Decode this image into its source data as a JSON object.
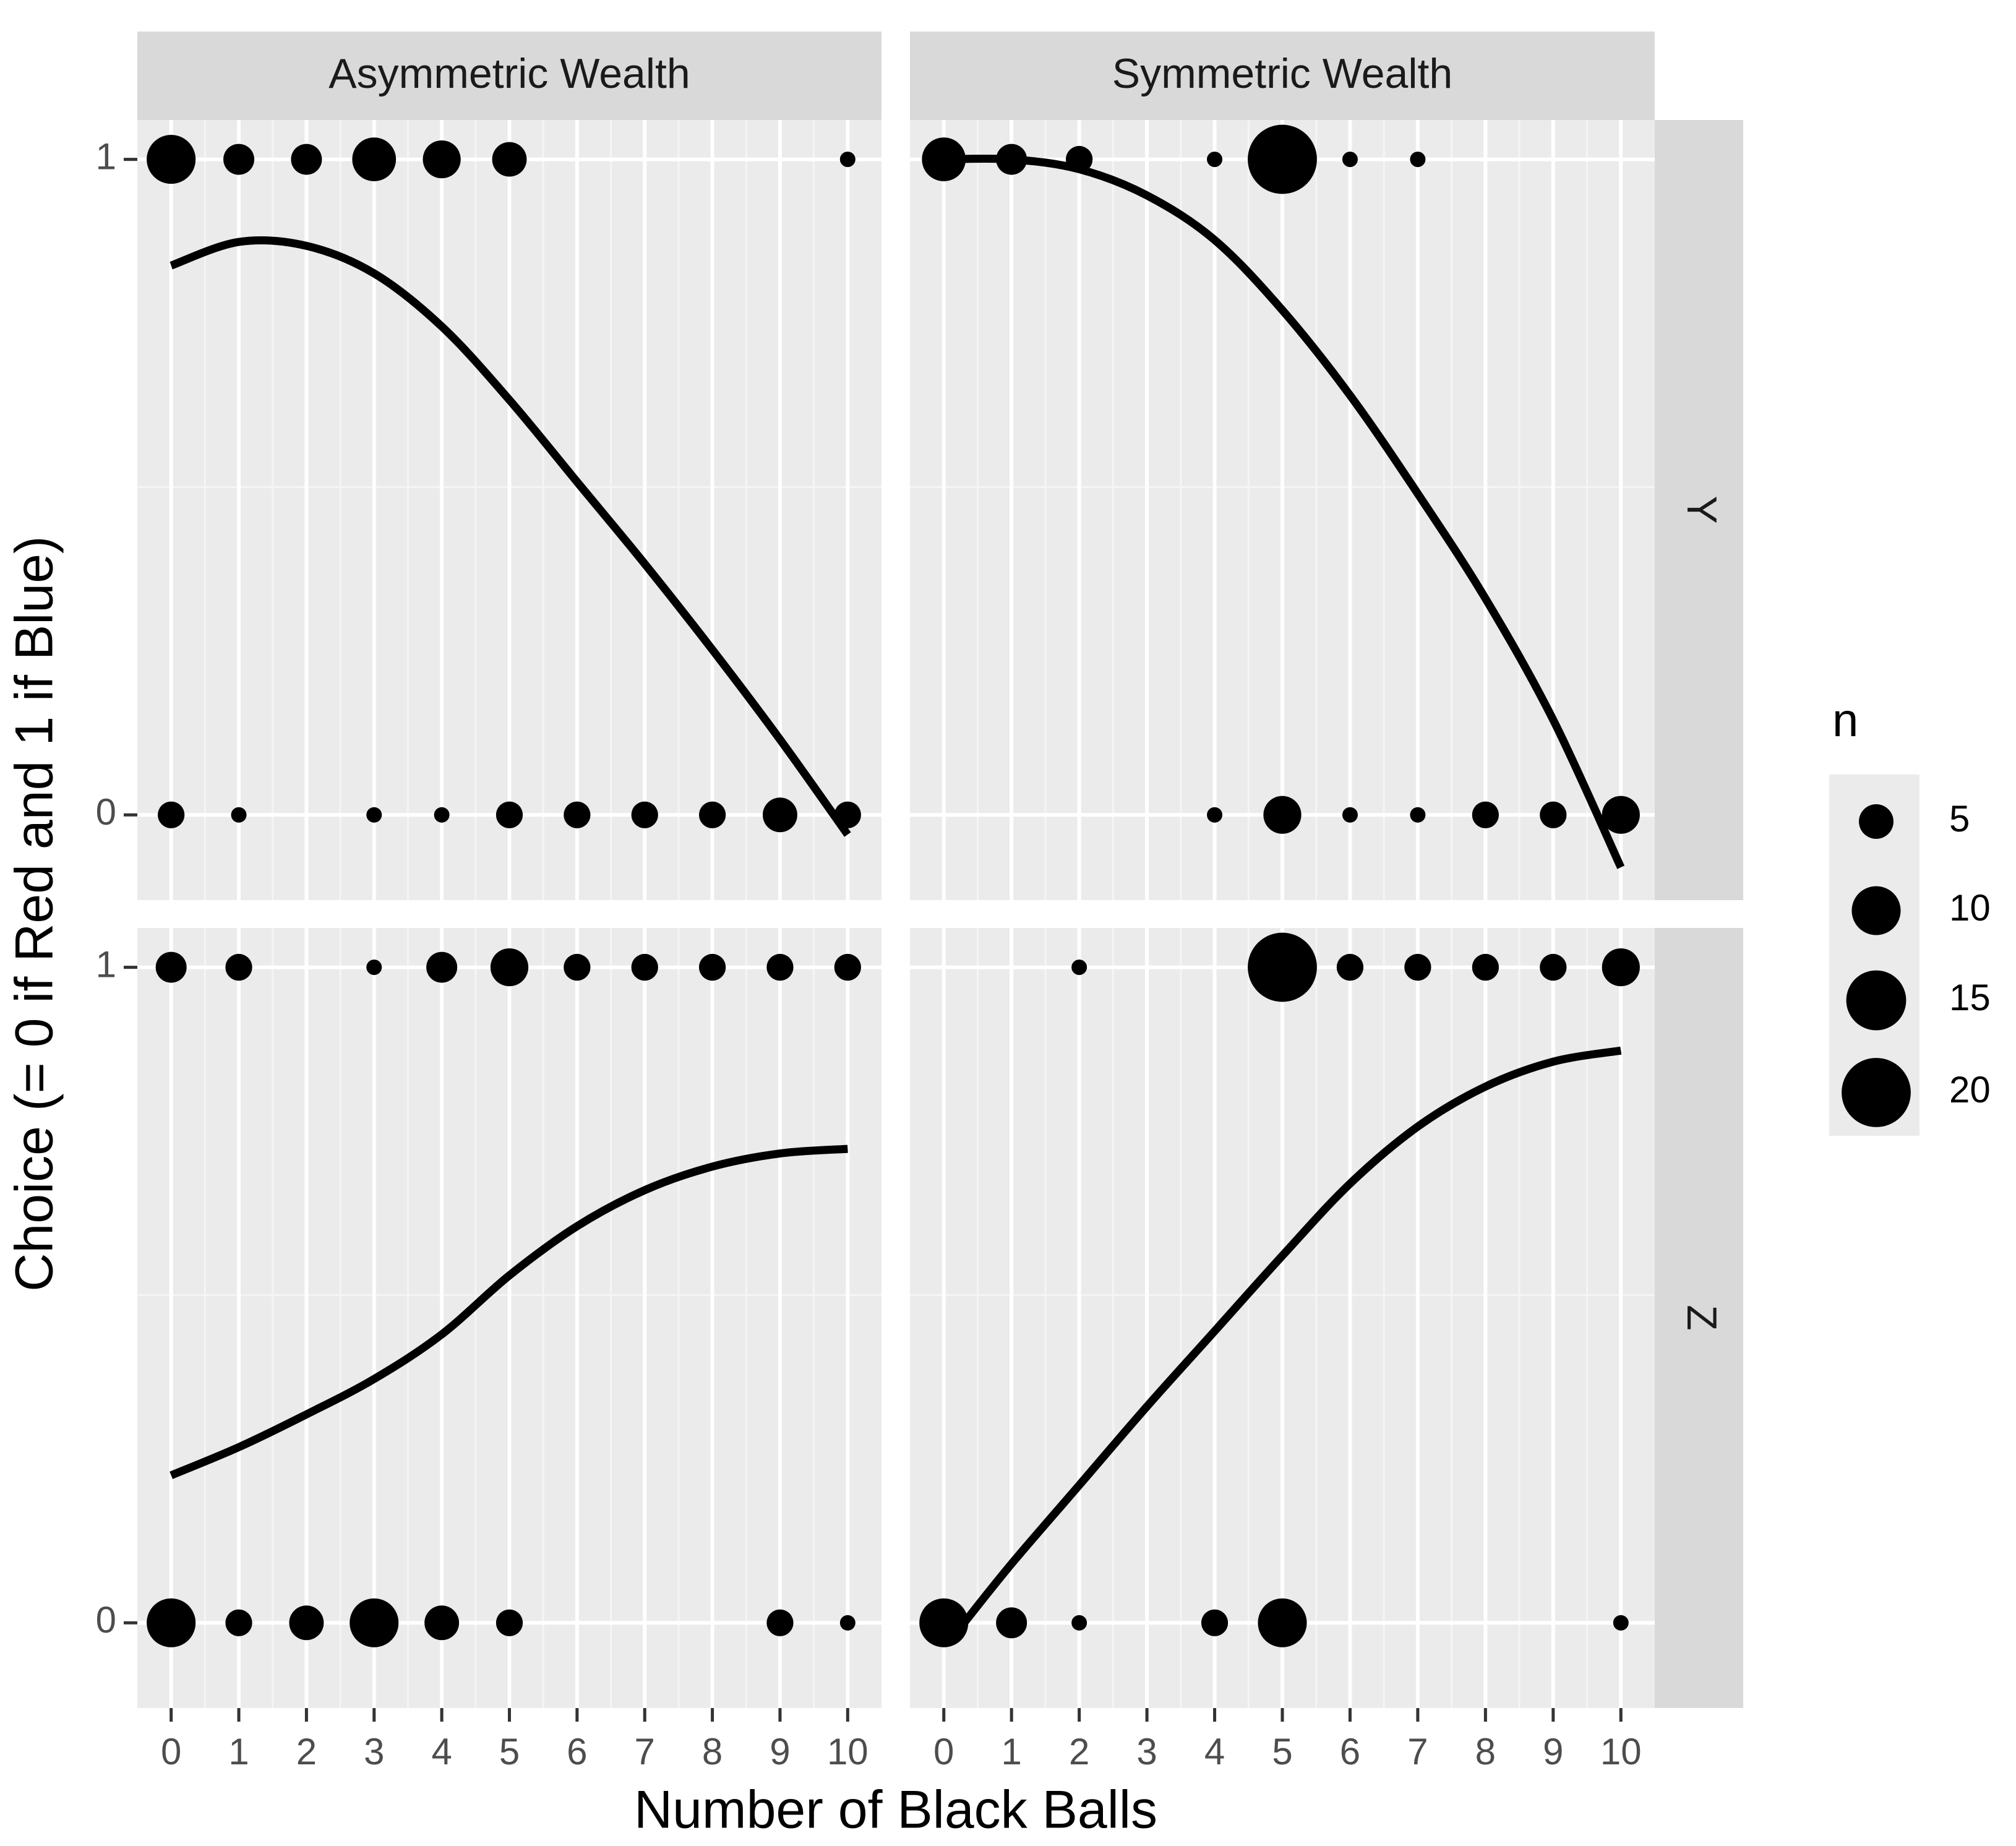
{
  "chart_data": {
    "type": "scatter",
    "title": "",
    "xlabel": "Number of Black Balls",
    "ylabel": "Choice (= 0 if Red and 1 if Blue)",
    "xlim": [
      -0.5,
      10.5
    ],
    "ylim": [
      -0.13,
      1.06
    ],
    "x_ticks": [
      "0",
      "1",
      "2",
      "3",
      "4",
      "5",
      "6",
      "7",
      "8",
      "9",
      "10"
    ],
    "y_ticks": [
      "0",
      "1"
    ],
    "col_facets": [
      "Asymmetric Wealth",
      "Symmetric Wealth"
    ],
    "row_facets": [
      "Y",
      "Z"
    ],
    "legend": {
      "title": "n",
      "position": "right",
      "entries": [
        {
          "label": "5",
          "value": 5
        },
        {
          "label": "10",
          "value": 10
        },
        {
          "label": "15",
          "value": 15
        },
        {
          "label": "20",
          "value": 20
        }
      ]
    },
    "panels": [
      {
        "col": "Asymmetric Wealth",
        "row": "Y",
        "points": [
          {
            "x": 0,
            "y": 1,
            "n": 10
          },
          {
            "x": 1,
            "y": 1,
            "n": 4
          },
          {
            "x": 2,
            "y": 1,
            "n": 4
          },
          {
            "x": 3,
            "y": 1,
            "n": 8
          },
          {
            "x": 4,
            "y": 1,
            "n": 6
          },
          {
            "x": 5,
            "y": 1,
            "n": 5
          },
          {
            "x": 10,
            "y": 1,
            "n": 1
          },
          {
            "x": 0,
            "y": 0,
            "n": 3
          },
          {
            "x": 1,
            "y": 0,
            "n": 1
          },
          {
            "x": 3,
            "y": 0,
            "n": 1
          },
          {
            "x": 4,
            "y": 0,
            "n": 1
          },
          {
            "x": 5,
            "y": 0,
            "n": 3
          },
          {
            "x": 6,
            "y": 0,
            "n": 3
          },
          {
            "x": 7,
            "y": 0,
            "n": 3
          },
          {
            "x": 8,
            "y": 0,
            "n": 3
          },
          {
            "x": 9,
            "y": 0,
            "n": 5
          },
          {
            "x": 10,
            "y": 0,
            "n": 3
          }
        ],
        "fit": [
          {
            "x": 0,
            "y": 0.838
          },
          {
            "x": 1,
            "y": 0.874
          },
          {
            "x": 2,
            "y": 0.868
          },
          {
            "x": 3,
            "y": 0.826
          },
          {
            "x": 4,
            "y": 0.745
          },
          {
            "x": 5,
            "y": 0.633
          },
          {
            "x": 6,
            "y": 0.508
          },
          {
            "x": 7,
            "y": 0.383
          },
          {
            "x": 8,
            "y": 0.252
          },
          {
            "x": 9,
            "y": 0.115
          },
          {
            "x": 10,
            "y": -0.03
          }
        ]
      },
      {
        "col": "Symmetric Wealth",
        "row": "Y",
        "points": [
          {
            "x": 0,
            "y": 1,
            "n": 8
          },
          {
            "x": 1,
            "y": 1,
            "n": 4
          },
          {
            "x": 2,
            "y": 1,
            "n": 3
          },
          {
            "x": 4,
            "y": 1,
            "n": 1
          },
          {
            "x": 5,
            "y": 1,
            "n": 20
          },
          {
            "x": 6,
            "y": 1,
            "n": 1
          },
          {
            "x": 7,
            "y": 1,
            "n": 1
          },
          {
            "x": 4,
            "y": 0,
            "n": 1
          },
          {
            "x": 5,
            "y": 0,
            "n": 6
          },
          {
            "x": 6,
            "y": 0,
            "n": 1
          },
          {
            "x": 7,
            "y": 0,
            "n": 1
          },
          {
            "x": 8,
            "y": 0,
            "n": 3
          },
          {
            "x": 9,
            "y": 0,
            "n": 3
          },
          {
            "x": 10,
            "y": 0,
            "n": 6
          }
        ],
        "fit": [
          {
            "x": 0,
            "y": 1.0
          },
          {
            "x": 1,
            "y": 1.0
          },
          {
            "x": 2,
            "y": 0.985
          },
          {
            "x": 3,
            "y": 0.945
          },
          {
            "x": 4,
            "y": 0.877
          },
          {
            "x": 5,
            "y": 0.77
          },
          {
            "x": 6,
            "y": 0.64
          },
          {
            "x": 7,
            "y": 0.49
          },
          {
            "x": 8,
            "y": 0.33
          },
          {
            "x": 9,
            "y": 0.145
          },
          {
            "x": 10,
            "y": -0.08
          }
        ]
      },
      {
        "col": "Asymmetric Wealth",
        "row": "Z",
        "points": [
          {
            "x": 0,
            "y": 1,
            "n": 4
          },
          {
            "x": 1,
            "y": 1,
            "n": 3
          },
          {
            "x": 3,
            "y": 1,
            "n": 1
          },
          {
            "x": 4,
            "y": 1,
            "n": 4
          },
          {
            "x": 5,
            "y": 1,
            "n": 6
          },
          {
            "x": 6,
            "y": 1,
            "n": 3
          },
          {
            "x": 7,
            "y": 1,
            "n": 3
          },
          {
            "x": 8,
            "y": 1,
            "n": 3
          },
          {
            "x": 9,
            "y": 1,
            "n": 3
          },
          {
            "x": 10,
            "y": 1,
            "n": 3
          },
          {
            "x": 0,
            "y": 0,
            "n": 10
          },
          {
            "x": 1,
            "y": 0,
            "n": 3
          },
          {
            "x": 2,
            "y": 0,
            "n": 5
          },
          {
            "x": 3,
            "y": 0,
            "n": 10
          },
          {
            "x": 4,
            "y": 0,
            "n": 5
          },
          {
            "x": 5,
            "y": 0,
            "n": 3
          },
          {
            "x": 9,
            "y": 0,
            "n": 3
          },
          {
            "x": 10,
            "y": 0,
            "n": 1
          }
        ],
        "fit": [
          {
            "x": 0,
            "y": 0.225
          },
          {
            "x": 1,
            "y": 0.268
          },
          {
            "x": 2,
            "y": 0.318
          },
          {
            "x": 3,
            "y": 0.372
          },
          {
            "x": 4,
            "y": 0.44
          },
          {
            "x": 5,
            "y": 0.53
          },
          {
            "x": 6,
            "y": 0.605
          },
          {
            "x": 7,
            "y": 0.66
          },
          {
            "x": 8,
            "y": 0.696
          },
          {
            "x": 9,
            "y": 0.716
          },
          {
            "x": 10,
            "y": 0.723
          }
        ]
      },
      {
        "col": "Symmetric Wealth",
        "row": "Z",
        "points": [
          {
            "x": 2,
            "y": 1,
            "n": 1
          },
          {
            "x": 5,
            "y": 1,
            "n": 20
          },
          {
            "x": 6,
            "y": 1,
            "n": 3
          },
          {
            "x": 7,
            "y": 1,
            "n": 3
          },
          {
            "x": 8,
            "y": 1,
            "n": 3
          },
          {
            "x": 9,
            "y": 1,
            "n": 3
          },
          {
            "x": 10,
            "y": 1,
            "n": 6
          },
          {
            "x": 0,
            "y": 0,
            "n": 10
          },
          {
            "x": 1,
            "y": 0,
            "n": 4
          },
          {
            "x": 2,
            "y": 0,
            "n": 1
          },
          {
            "x": 4,
            "y": 0,
            "n": 3
          },
          {
            "x": 5,
            "y": 0,
            "n": 10
          },
          {
            "x": 10,
            "y": 0,
            "n": 1
          }
        ],
        "fit": [
          {
            "x": 0.3,
            "y": 0.0
          },
          {
            "x": 1,
            "y": 0.09
          },
          {
            "x": 2,
            "y": 0.21
          },
          {
            "x": 3,
            "y": 0.33
          },
          {
            "x": 4,
            "y": 0.445
          },
          {
            "x": 5,
            "y": 0.56
          },
          {
            "x": 6,
            "y": 0.67
          },
          {
            "x": 7,
            "y": 0.757
          },
          {
            "x": 8,
            "y": 0.818
          },
          {
            "x": 9,
            "y": 0.856
          },
          {
            "x": 10,
            "y": 0.873
          }
        ]
      }
    ]
  }
}
